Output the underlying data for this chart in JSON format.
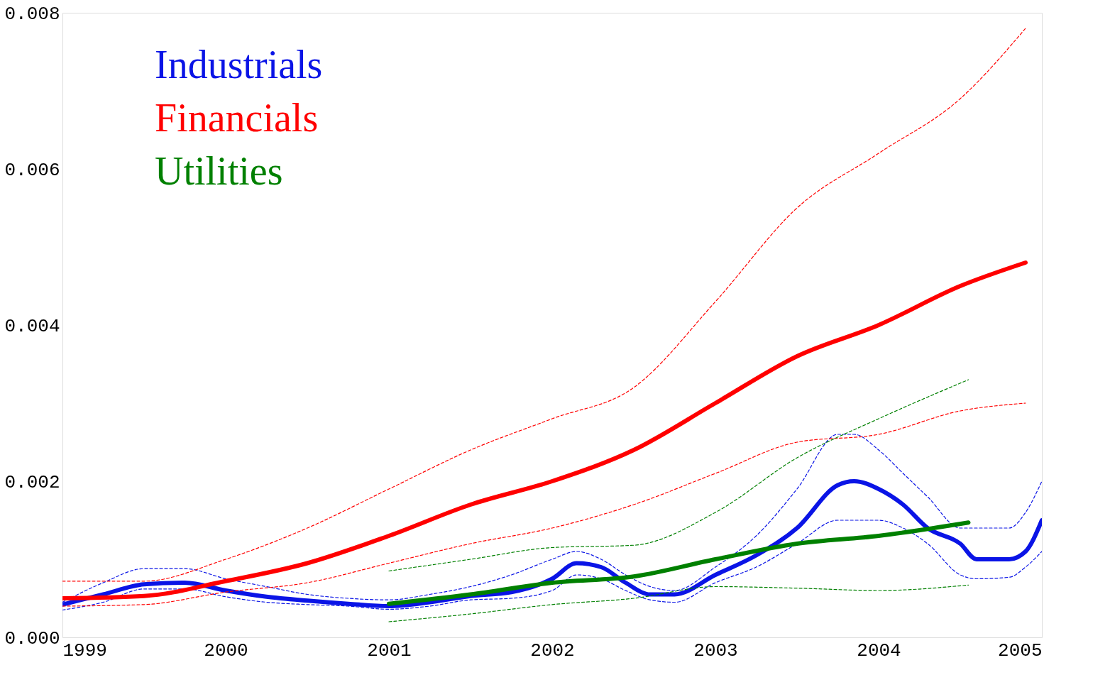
{
  "chart_data": {
    "type": "line",
    "legend": "top left",
    "grid": false,
    "marker": "none",
    "line_style": "solid",
    "xlim": [
      1999,
      2005
    ],
    "xticks": [
      1999,
      2000,
      2001,
      2002,
      2003,
      2004,
      2005
    ],
    "ylim": [
      0,
      0.008
    ],
    "yticks": [
      {
        "value": 0,
        "label": "0.000"
      },
      {
        "value": 0.002,
        "label": "0.002"
      },
      {
        "value": 0.004,
        "label": "0.004"
      },
      {
        "value": 0.006,
        "label": "0.006"
      },
      {
        "value": 0.008,
        "label": "0.008"
      }
    ],
    "series": [
      {
        "name": "Industrials",
        "color": "#0a14e6",
        "x": [
          1999,
          1999.25,
          1999.5,
          1999.75,
          2000,
          2000.25,
          2000.5,
          2000.75,
          2001,
          2001.25,
          2001.5,
          2001.75,
          2002,
          2002.15,
          2002.3,
          2002.45,
          2002.6,
          2002.75,
          2003,
          2003.25,
          2003.5,
          2003.75,
          2003.85,
          2004,
          2004.15,
          2004.3,
          2004.5,
          2004.6,
          2004.8,
          2004.9,
          2005
        ],
        "values": [
          0.00042,
          0.00055,
          0.00068,
          0.0007,
          0.0006,
          0.00052,
          0.00047,
          0.00043,
          0.0004,
          0.00045,
          0.00053,
          0.00058,
          0.00075,
          0.00095,
          0.0009,
          0.0007,
          0.00055,
          0.00055,
          0.0008,
          0.00105,
          0.0014,
          0.00195,
          0.002,
          0.0019,
          0.0017,
          0.0014,
          0.0012,
          0.001,
          0.001,
          0.0011,
          0.0015
        ]
      },
      {
        "color": "#0a14e6",
        "line_style": "dashed",
        "x": [
          1999,
          1999.25,
          1999.5,
          1999.75,
          2000,
          2000.25,
          2000.5,
          2000.75,
          2001,
          2001.25,
          2001.5,
          2001.75,
          2002,
          2002.15,
          2002.3,
          2002.45,
          2002.6,
          2002.75,
          2003,
          2003.25,
          2003.5,
          2003.75,
          2003.85,
          2004,
          2004.15,
          2004.3,
          2004.5,
          2004.6,
          2004.8,
          2004.9,
          2005
        ],
        "values": [
          0.00045,
          0.0007,
          0.00088,
          0.00088,
          0.00075,
          0.00065,
          0.00055,
          0.0005,
          0.00048,
          0.00055,
          0.00065,
          0.0008,
          0.001,
          0.0011,
          0.001,
          0.0008,
          0.00065,
          0.0006,
          0.0009,
          0.0013,
          0.0019,
          0.0026,
          0.0026,
          0.0024,
          0.0021,
          0.0018,
          0.0014,
          0.0014,
          0.0014,
          0.0016,
          0.002
        ]
      },
      {
        "color": "#0a14e6",
        "line_style": "dashed",
        "x": [
          1999,
          1999.25,
          1999.5,
          1999.75,
          2000,
          2000.25,
          2000.5,
          2000.75,
          2001,
          2001.25,
          2001.5,
          2001.75,
          2002,
          2002.15,
          2002.3,
          2002.45,
          2002.6,
          2002.75,
          2003,
          2003.25,
          2003.5,
          2003.75,
          2003.85,
          2004,
          2004.15,
          2004.3,
          2004.5,
          2004.6,
          2004.8,
          2004.9,
          2005
        ],
        "values": [
          0.00035,
          0.00045,
          0.00062,
          0.00062,
          0.00052,
          0.00045,
          0.00042,
          0.0004,
          0.00036,
          0.0004,
          0.00048,
          0.0005,
          0.0006,
          0.0008,
          0.00075,
          0.0006,
          0.00048,
          0.00045,
          0.0007,
          0.0009,
          0.0012,
          0.0015,
          0.0015,
          0.0015,
          0.0014,
          0.0012,
          0.0008,
          0.00075,
          0.00077,
          0.0009,
          0.0011
        ]
      },
      {
        "name": "Financials",
        "color": "#ff0000",
        "x": [
          1999,
          1999.5,
          2000,
          2000.5,
          2001,
          2001.5,
          2002,
          2002.5,
          2003,
          2003.5,
          2004,
          2004.5,
          2004.9
        ],
        "values": [
          0.0005,
          0.00053,
          0.00072,
          0.00095,
          0.0013,
          0.0017,
          0.002,
          0.0024,
          0.003,
          0.0036,
          0.004,
          0.0045,
          0.0048
        ]
      },
      {
        "color": "#ff0000",
        "line_style": "dashed",
        "x": [
          1999,
          1999.5,
          2000,
          2000.5,
          2001,
          2001.5,
          2002,
          2002.5,
          2003,
          2003.5,
          2004,
          2004.5,
          2004.9
        ],
        "values": [
          0.00072,
          0.00072,
          0.001,
          0.0014,
          0.0019,
          0.0024,
          0.0028,
          0.0032,
          0.0043,
          0.0055,
          0.0062,
          0.0069,
          0.0078
        ]
      },
      {
        "color": "#ff0000",
        "line_style": "dashed",
        "x": [
          1999,
          1999.5,
          2000,
          2000.5,
          2001,
          2001.5,
          2002,
          2002.5,
          2003,
          2003.5,
          2004,
          2004.5,
          2004.9
        ],
        "values": [
          0.0004,
          0.00042,
          0.00058,
          0.0007,
          0.00095,
          0.0012,
          0.0014,
          0.0017,
          0.0021,
          0.0025,
          0.0026,
          0.0029,
          0.003
        ]
      },
      {
        "name": "Utilities",
        "color": "#008000",
        "x": [
          2001,
          2001.5,
          2002,
          2002.5,
          2003,
          2003.5,
          2004,
          2004.55
        ],
        "values": [
          0.00043,
          0.00055,
          0.0007,
          0.00078,
          0.001,
          0.0012,
          0.0013,
          0.00147
        ]
      },
      {
        "color": "#008000",
        "line_style": "dashed",
        "x": [
          2001,
          2001.5,
          2002,
          2002.5,
          2003,
          2003.5,
          2004,
          2004.55
        ],
        "values": [
          0.00085,
          0.001,
          0.00115,
          0.00118,
          0.0016,
          0.0023,
          0.0028,
          0.0033
        ]
      },
      {
        "color": "#008000",
        "line_style": "dashed",
        "x": [
          2001,
          2001.5,
          2002,
          2002.5,
          2003,
          2003.5,
          2004,
          2004.55
        ],
        "values": [
          0.0002,
          0.0003,
          0.00042,
          0.0005,
          0.00065,
          0.00063,
          0.0006,
          0.00067
        ]
      }
    ]
  }
}
